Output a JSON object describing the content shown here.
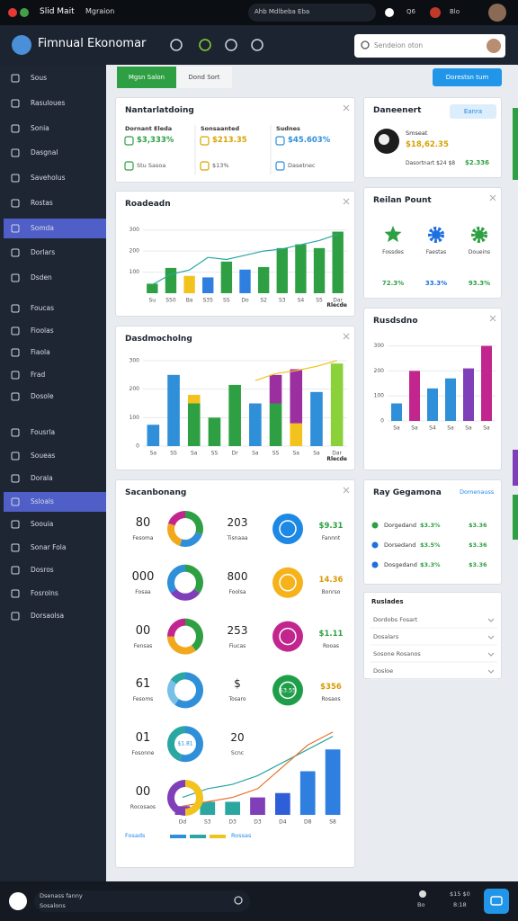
{
  "status_bar": {
    "left": [
      "Slid Mait",
      "Mgraion"
    ],
    "right": [
      "Ahb Mdlbeba Eba",
      "Q6",
      "Blo"
    ]
  },
  "header": {
    "title": "Fimnual Ekonomar",
    "search": "Sendeion oton"
  },
  "sidebar": {
    "items": [
      "Sous",
      "Rasuloues",
      "Sonia",
      "Dasgnal",
      "Saveholus",
      "Rostas",
      "Somda",
      "Dorlars",
      "Dsden",
      "Foucas",
      "Fioolas",
      "Fiaola",
      "Frad",
      "Dosole",
      "Fousrla",
      "Soueas",
      "Dorala",
      "Ssloals",
      "Soouia",
      "Sonar Fola",
      "Dosros",
      "Fosrolns",
      "Dorsaolsa"
    ],
    "active": [
      6,
      17
    ]
  },
  "tabs": {
    "items": [
      "Mgsn Salon",
      "Dond Sort"
    ],
    "active": 0,
    "button": "Dorestsn tum"
  },
  "kpi": {
    "title": "Nantarlatdoing",
    "columns": [
      {
        "label": "Dornant Eleda",
        "value": "$3,333%",
        "sub": "Stu Sasoa",
        "color": "#2ea043"
      },
      {
        "label": "Sonsaanted",
        "value": "$213.35",
        "sub": "$13%",
        "color": "#d9a400"
      },
      {
        "label": "Sudnes",
        "value": "$45.603%",
        "sub": "Dasetnec",
        "color": "#2f8fd8"
      }
    ]
  },
  "profile": {
    "title": "Daneenert",
    "button": "Eanra",
    "name": "Smseat",
    "value": "$18,62.35",
    "footer": "Dasortnart $24 $8",
    "footer_value": "$2.336"
  },
  "reilan": {
    "title": "Reilan Pount",
    "items": [
      {
        "label": "Fossdes",
        "value": "72.3%",
        "color": "#2ea043"
      },
      {
        "label": "Faestas",
        "value": "33.3%",
        "color": "#1e6fe0"
      },
      {
        "label": "Doueins",
        "value": "93.3%",
        "color": "#2ea043"
      }
    ]
  },
  "score": {
    "title": "Sacanbonang",
    "rows": [
      {
        "number": "80",
        "label": "Fesoma",
        "mid": "203",
        "mid_label": "Tisnaaa",
        "icon": "#1e88e5",
        "value": "$9.31",
        "value_label": "Fannnt",
        "value_color": "#2ea043"
      },
      {
        "number": "000",
        "label": "Fosaa",
        "mid": "800",
        "mid_label": "Foolsa",
        "icon": "#f5b21b",
        "value": "14.36",
        "value_label": "Bonrso",
        "value_color": "#d99a00"
      },
      {
        "number": "00",
        "label": "Fensas",
        "mid": "253",
        "mid_label": "Fiucas",
        "icon": "#c2268e",
        "value": "$1.11",
        "value_label": "Rooas",
        "value_color": "#2ea043"
      },
      {
        "number": "61",
        "label": "Fesoms",
        "mid": "$",
        "mid_label": "Tosaro",
        "icon": "#1f9e4a",
        "icon_text": "$3.55",
        "value": "$356",
        "value_label": "Rosaos",
        "value_color": "#d99a00"
      },
      {
        "number": "01",
        "label": "Fosonne",
        "mid": "20",
        "mid_label": "Scnc"
      },
      {
        "number": "00",
        "label": "Rocosaos"
      }
    ],
    "legend": [
      "Fosads",
      "Rossas"
    ]
  },
  "ray": {
    "title": "Ray Gegamona",
    "link": "Domenauss",
    "rows": [
      {
        "label": "Dorgedand",
        "pct": "$3.3%",
        "value": "$3.36",
        "color": "#2ea043"
      },
      {
        "label": "Dorsedand",
        "pct": "$3.5%",
        "value": "$3.36",
        "color": "#1e6fe0"
      },
      {
        "label": "Dosgedand",
        "pct": "$3.3%",
        "value": "$3.36",
        "color": "#1e6fe0"
      }
    ]
  },
  "ruslades": {
    "title": "Ruslades",
    "rows": [
      "Dordobs Fosart",
      "Dosalars",
      "Sosone Rosanos",
      "Dosloe"
    ]
  },
  "bottom_bar": {
    "name": "Dsenass fanny",
    "sub": "Sosalons",
    "right": "Bo",
    "time": "$15 $0",
    "clock": "8:18"
  },
  "chart_data": [
    {
      "type": "bar",
      "title": "Roadeadn",
      "note": "Rlecde",
      "categories": [
        "Su",
        "S50",
        "Ba",
        "S35",
        "SS",
        "Do",
        "S2",
        "S3",
        "S4",
        "S5",
        "Dar"
      ],
      "series": [
        {
          "colors": [
            "#2ea043",
            "#2ea043",
            "#f2c21d",
            "#2f7fe0",
            "#2ea043",
            "#2f7fe0",
            "#2ea043",
            "#2ea043",
            "#2ea043",
            "#2ea043",
            "#2ea043"
          ],
          "values": [
            45,
            120,
            82,
            75,
            150,
            112,
            124,
            214,
            232,
            214,
            292
          ]
        }
      ],
      "lines": [
        {
          "color": "#2aa7a0",
          "values": [
            40,
            90,
            110,
            170,
            160,
            180,
            200,
            210,
            230,
            250,
            280
          ]
        }
      ],
      "ylim": [
        0,
        320
      ],
      "yticks": [
        100,
        200,
        300
      ],
      "grid": true
    },
    {
      "type": "bar",
      "stacked": true,
      "title": "Dasdmocholng",
      "note": "Rlecde",
      "categories": [
        "Sa",
        "SS",
        "Sa",
        "SS",
        "Dr",
        "Sa",
        "SS",
        "Sa",
        "Sa",
        "Dar"
      ],
      "series": [
        {
          "color": "#2f8fd8",
          "values": [
            75,
            250,
            0,
            0,
            0,
            150,
            0,
            0,
            190,
            0
          ]
        },
        {
          "color": "#2ea043",
          "values": [
            0,
            0,
            150,
            100,
            215,
            0,
            150,
            0,
            0,
            0
          ]
        },
        {
          "color": "#f2c21d",
          "values": [
            0,
            0,
            30,
            0,
            0,
            0,
            0,
            80,
            0,
            0
          ]
        },
        {
          "color": "#9b2fa0",
          "values": [
            0,
            0,
            0,
            0,
            0,
            0,
            100,
            190,
            0,
            0
          ]
        },
        {
          "color": "#8bd13a",
          "values": [
            0,
            0,
            0,
            0,
            0,
            0,
            0,
            0,
            0,
            290
          ]
        }
      ],
      "lines": [
        {
          "color": "#f2c21d",
          "values": [
            null,
            null,
            null,
            null,
            null,
            230,
            255,
            265,
            280,
            300
          ]
        }
      ],
      "ylim": [
        0,
        300
      ],
      "yticks": [
        0,
        100,
        200,
        300
      ],
      "grid": true
    },
    {
      "type": "bar",
      "title": "Rusdsdno",
      "categories": [
        "Sa",
        "Sa",
        "S4",
        "Sa",
        "Sa",
        "Sa"
      ],
      "series": [
        {
          "colors": [
            "#2f8fd8",
            "#c2268e",
            "#2f8fd8",
            "#2f8fd8",
            "#7e3fb8",
            "#c2268e"
          ],
          "values": [
            70,
            200,
            130,
            170,
            210,
            300
          ]
        }
      ],
      "ylim": [
        0,
        320
      ],
      "yticks": [
        0,
        100,
        200,
        300
      ],
      "grid": true
    },
    {
      "type": "bar",
      "categories": [
        "Dd",
        "S3",
        "D3",
        "D3",
        "D4",
        "D8",
        "S8"
      ],
      "series": [
        {
          "colors": [
            "#7e3fb8",
            "#2aa7a0",
            "#2aa7a0",
            "#7e3fb8",
            "#2f5fd8",
            "#2f7fe0",
            "#2f7fe0"
          ],
          "values": [
            10,
            15,
            15,
            20,
            25,
            50,
            75
          ]
        }
      ],
      "lines": [
        {
          "color": "#2aa7a0",
          "values": [
            20,
            30,
            35,
            45,
            60,
            75,
            90
          ]
        },
        {
          "color": "#e8702a",
          "values": [
            10,
            15,
            20,
            30,
            55,
            80,
            95
          ]
        }
      ],
      "ylim": [
        0,
        100
      ]
    },
    {
      "type": "pie",
      "values": [
        30,
        25,
        25,
        20
      ],
      "colors": [
        "#2ea043",
        "#2f8fd8",
        "#f2a81d",
        "#c2268e"
      ]
    },
    {
      "type": "pie",
      "values": [
        35,
        30,
        35
      ],
      "colors": [
        "#2ea043",
        "#7e3fb8",
        "#2f8fd8"
      ]
    },
    {
      "type": "pie",
      "values": [
        40,
        35,
        25
      ],
      "colors": [
        "#2ea043",
        "#f2a81d",
        "#c2268e"
      ]
    },
    {
      "type": "pie",
      "values": [
        60,
        25,
        15
      ],
      "colors": [
        "#2f8fd8",
        "#79c0e8",
        "#2aa7a0"
      ]
    },
    {
      "type": "pie",
      "values": [
        55,
        45
      ],
      "colors": [
        "#2f8fd8",
        "#2aa7a0"
      ],
      "center_label": "$1.81"
    },
    {
      "type": "pie",
      "values": [
        50,
        50
      ],
      "colors": [
        "#f2c21d",
        "#7e3fb8"
      ]
    }
  ]
}
